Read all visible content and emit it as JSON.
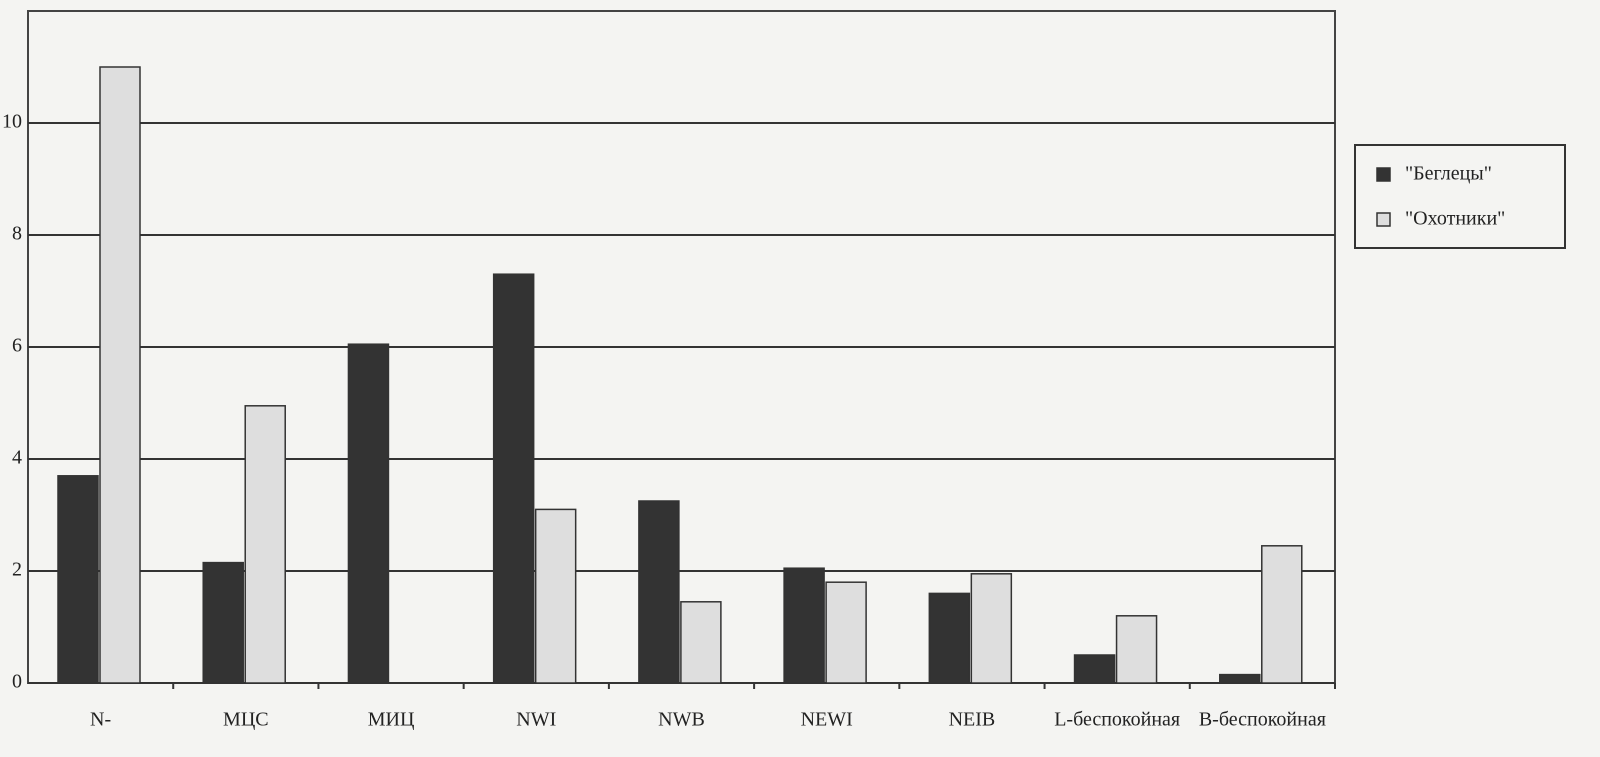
{
  "chart_data": {
    "type": "bar",
    "categories": [
      "N-",
      "МЦС",
      "МИЦ",
      "NWI",
      "NWB",
      "NEWI",
      "NEIB",
      "L-беспокойная",
      "B-беспокойная"
    ],
    "series": [
      {
        "name": "\"Беглецы\"",
        "color": "#333333",
        "values": [
          3.7,
          2.15,
          6.05,
          7.3,
          3.25,
          2.05,
          1.6,
          0.5,
          0.15
        ]
      },
      {
        "name": "\"Охотники\"",
        "color": "#dedede",
        "values": [
          11,
          4.95,
          0,
          3.1,
          1.45,
          1.8,
          1.95,
          1.2,
          2.45
        ]
      }
    ],
    "ylim": [
      0,
      12
    ],
    "yticks": [
      0,
      2,
      4,
      6,
      8,
      10
    ],
    "grid": true,
    "legend": "right"
  }
}
